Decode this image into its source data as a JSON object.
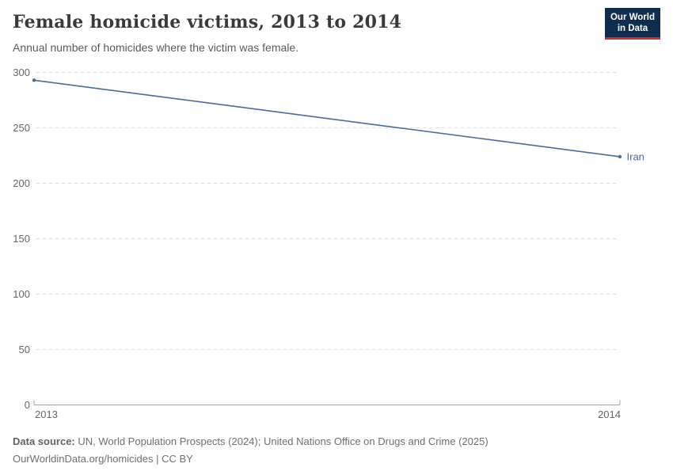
{
  "header": {
    "title": "Female homicide victims, 2013 to 2014",
    "subtitle": "Annual number of homicides where the victim was female.",
    "logo": {
      "line1": "Our World",
      "line2": "in Data"
    }
  },
  "chart_data": {
    "type": "line",
    "title": "Female homicide victims, 2013 to 2014",
    "subtitle": "Annual number of homicides where the victim was female.",
    "x": [
      2013,
      2014
    ],
    "series": [
      {
        "name": "Iran",
        "values": [
          293,
          224
        ],
        "color": "#4c6a9c"
      }
    ],
    "ylim": [
      0,
      300
    ],
    "yticks": [
      0,
      50,
      100,
      150,
      200,
      250,
      300
    ],
    "xticks": [
      "2013",
      "2014"
    ],
    "grid": "horizontal-dashed",
    "legend_position": "line-end-label"
  },
  "footer": {
    "source_bold": "Data source:",
    "source_rest": " UN, World Population Prospects (2024); United Nations Office on Drugs and Crime (2025)",
    "license": "OurWorldinData.org/homicides | CC BY"
  },
  "colors": {
    "line": "#4c6a9c",
    "grid": "#dcdcdc",
    "axis": "#a3a3a3",
    "tick_label": "#666666",
    "title": "#3a3a3a",
    "logo_bg": "#0f2d4f",
    "logo_red": "#cf2e29"
  }
}
